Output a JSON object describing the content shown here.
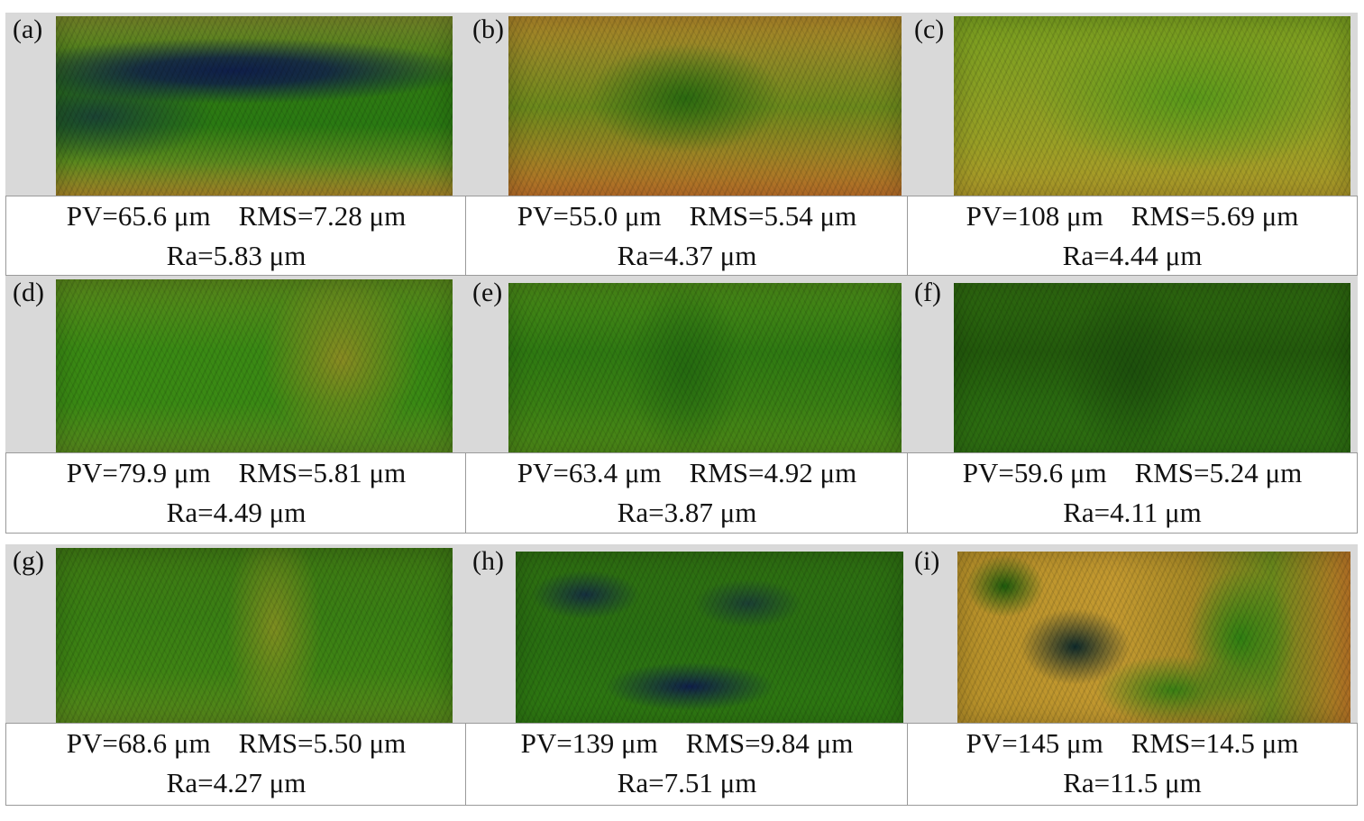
{
  "panels": [
    {
      "label": "(a)",
      "line1": "PV=65.6 μm    RMS=7.28 μm",
      "line2": "Ra=5.83 μm"
    },
    {
      "label": "(b)",
      "line1": "PV=55.0 μm    RMS=5.54 μm",
      "line2": "Ra=4.37 μm"
    },
    {
      "label": "(c)",
      "line1": "PV=108 μm    RMS=5.69 μm",
      "line2": "Ra=4.44 μm"
    },
    {
      "label": "(d)",
      "line1": "PV=79.9 μm    RMS=5.81 μm",
      "line2": "Ra=4.49 μm"
    },
    {
      "label": "(e)",
      "line1": "PV=63.4 μm    RMS=4.92 μm",
      "line2": "Ra=3.87 μm"
    },
    {
      "label": "(f)",
      "line1": "PV=59.6 μm    RMS=5.24 μm",
      "line2": "Ra=4.11 μm"
    },
    {
      "label": "(g)",
      "line1": "PV=68.6 μm    RMS=5.50 μm",
      "line2": "Ra=4.27 μm"
    },
    {
      "label": "(h)",
      "line1": "PV=139 μm    RMS=9.84 μm",
      "line2": "Ra=7.51 μm"
    },
    {
      "label": "(i)",
      "line1": "PV=145 μm    RMS=14.5 μm",
      "line2": "Ra=11.5 μm"
    }
  ],
  "colors": {
    "frame": "#d9d9d9",
    "green": "#2f8a12",
    "dark_green": "#1d5a0c",
    "yellow": "#c9b22a",
    "orange": "#c9701e",
    "navy": "#0f1f4a"
  }
}
